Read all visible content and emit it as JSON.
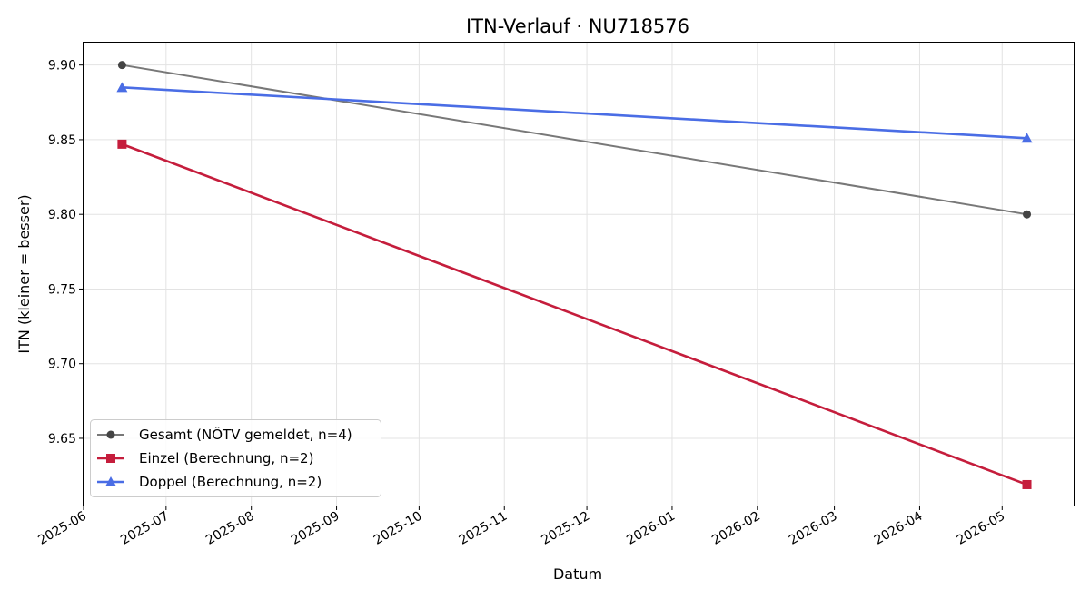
{
  "chart_data": {
    "type": "line",
    "title": "ITN-Verlauf · NU718576",
    "xlabel": "Datum",
    "ylabel": "ITN  (kleiner = besser)",
    "xlim": [
      "2025-06-01",
      "2026-05-27"
    ],
    "ylim": [
      9.605,
      9.915
    ],
    "x_ticks": [
      "2025-06",
      "2025-07",
      "2025-08",
      "2025-09",
      "2025-10",
      "2025-11",
      "2025-12",
      "2026-01",
      "2026-02",
      "2026-03",
      "2026-04",
      "2026-05"
    ],
    "y_ticks": [
      9.65,
      9.7,
      9.75,
      9.8,
      9.85,
      9.9
    ],
    "grid": true,
    "legend_position": "lower-left",
    "series": [
      {
        "name": "Gesamt (NÖTV gemeldet, n=4)",
        "color": "#444444",
        "marker": "circle",
        "points": [
          {
            "x": "2025-06-15",
            "y": 9.9
          },
          {
            "x": "2026-05-10",
            "y": 9.8
          }
        ]
      },
      {
        "name": "Einzel (Berechnung, n=2)",
        "color": "#c51d3c",
        "marker": "square",
        "points": [
          {
            "x": "2025-06-15",
            "y": 9.847
          },
          {
            "x": "2026-05-10",
            "y": 9.619
          }
        ]
      },
      {
        "name": "Doppel (Berechnung, n=2)",
        "color": "#4a6de5",
        "marker": "triangle",
        "points": [
          {
            "x": "2025-06-15",
            "y": 9.885
          },
          {
            "x": "2026-05-10",
            "y": 9.851
          }
        ]
      }
    ]
  }
}
